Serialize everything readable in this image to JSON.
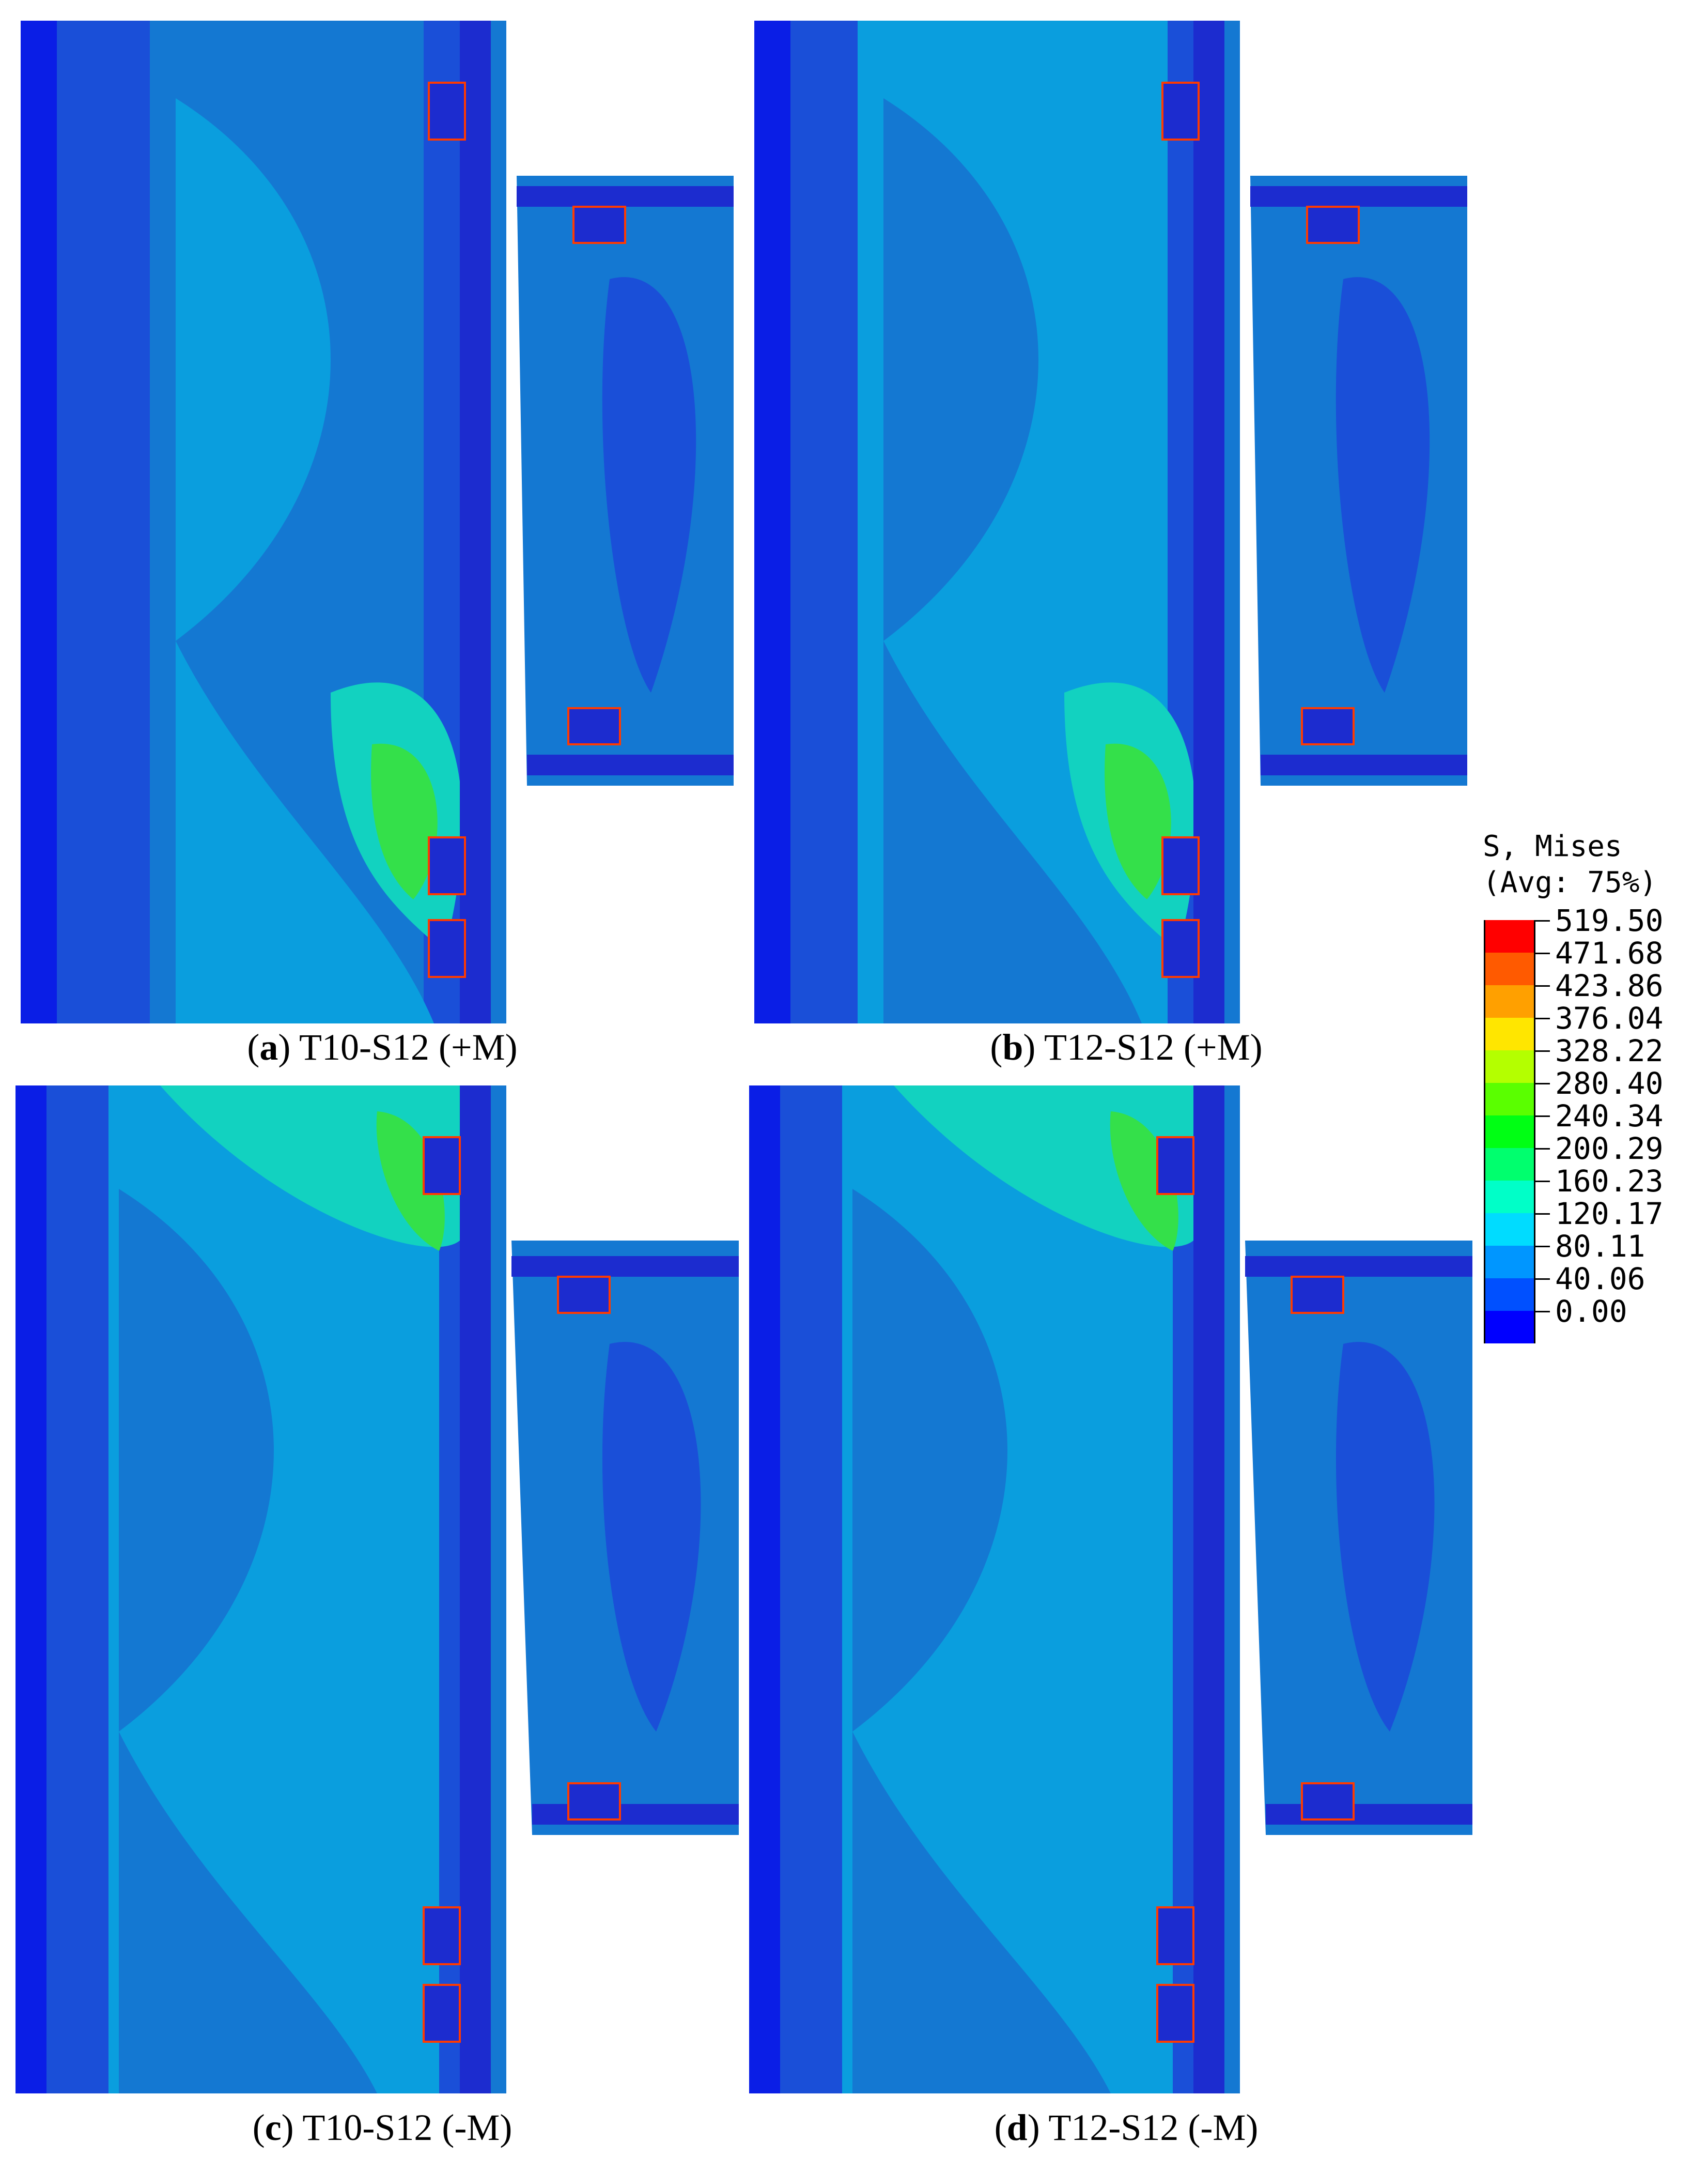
{
  "panels": [
    {
      "letter": "a",
      "label": " T10-S12 (+M)",
      "moment": "+M"
    },
    {
      "letter": "b",
      "label": " T12-S12 (+M)",
      "moment": "+M"
    },
    {
      "letter": "c",
      "label": " T10-S12 (-M)",
      "moment": "-M"
    },
    {
      "letter": "d",
      "label": " T12-S12 (-M)",
      "moment": "-M"
    }
  ],
  "legend": {
    "title_line1": "S, Mises",
    "title_line2": "(Avg: 75%)",
    "values": [
      "519.50",
      "471.68",
      "423.86",
      "376.04",
      "328.22",
      "280.40",
      "240.34",
      "200.29",
      "160.23",
      "120.17",
      "80.11",
      "40.06",
      "0.00"
    ],
    "colors": [
      "#ff0000",
      "#ff5a00",
      "#ffa000",
      "#ffe600",
      "#b4ff00",
      "#5aff00",
      "#00ff14",
      "#00ff6e",
      "#00ffc8",
      "#00dcff",
      "#0096ff",
      "#0050ff",
      "#0000ff"
    ]
  },
  "contour_colors": {
    "deep": "#0a1ee6",
    "dark": "#1a4fd8",
    "mid": "#1478d2",
    "light": "#0a9ede",
    "teal": "#12d2c0",
    "green": "#34e04a",
    "flange": "#1c2ccf",
    "hot": "#ff3a00"
  }
}
